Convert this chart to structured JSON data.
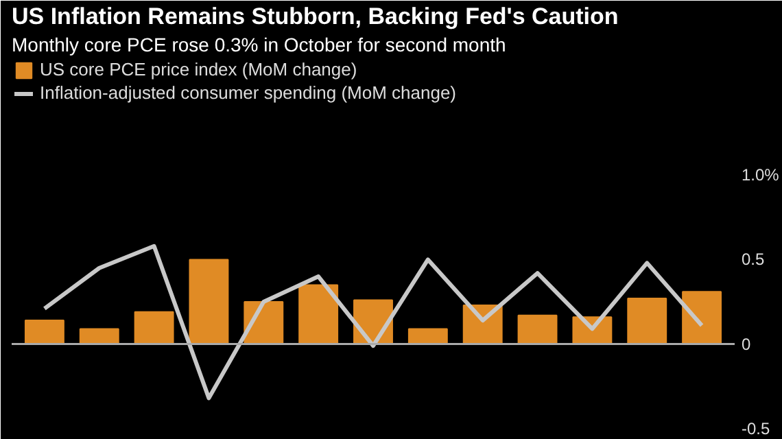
{
  "chart_data": {
    "type": "bar",
    "title": "US Inflation Remains Stubborn, Backing Fed's Caution",
    "subtitle": "Monthly core PCE rose 0.3% in October for second month",
    "categories": [
      null,
      null,
      null,
      null,
      null,
      null,
      null,
      null,
      null,
      null,
      null,
      null,
      null
    ],
    "series": [
      {
        "name": "US core PCE price index (MoM change)",
        "color": "#e08b25",
        "values": [
          0.14,
          0.09,
          0.19,
          0.5,
          0.25,
          0.35,
          0.26,
          0.09,
          0.23,
          0.17,
          0.16,
          0.27,
          0.31
        ]
      },
      {
        "name": "Inflation-adjusted consumer spending (MoM change)",
        "type": "line",
        "color": "#c8c8c8",
        "values": [
          0.21,
          0.45,
          0.58,
          -0.32,
          0.25,
          0.4,
          -0.01,
          0.5,
          0.14,
          0.42,
          0.09,
          0.48,
          0.11
        ]
      }
    ],
    "ylim": [
      -0.55,
      1.7
    ],
    "yticks": [
      {
        "value": -0.5,
        "label": "-0.5"
      },
      0,
      0.5,
      {
        "value": 1.0,
        "label": "1.0%"
      }
    ],
    "ref_lines": [
      {
        "axis": "y",
        "value": 0,
        "color": "#aaaaaa"
      }
    ],
    "grid": false,
    "legend": "top left",
    "tick_labels": "y"
  }
}
